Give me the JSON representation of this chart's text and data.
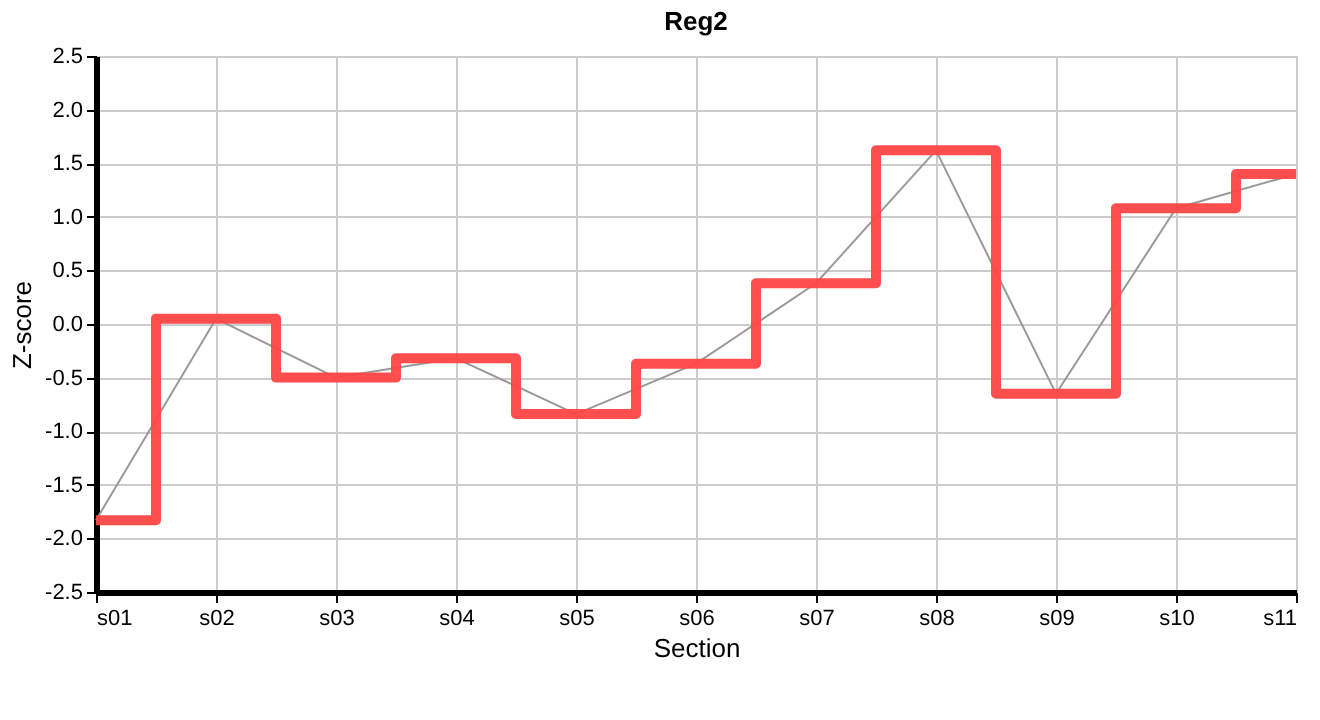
{
  "chart_data": {
    "type": "step",
    "title": "Reg2",
    "xlabel": "Section",
    "ylabel": "Z-score",
    "categories": [
      "s01",
      "s02",
      "s03",
      "s04",
      "s05",
      "s06",
      "s07",
      "s08",
      "s09",
      "s10",
      "s11"
    ],
    "series": [
      {
        "type": "line",
        "color": "#999999",
        "values": [
          -1.83,
          0.05,
          -0.5,
          -0.32,
          -0.84,
          -0.37,
          0.38,
          1.62,
          -0.65,
          1.08,
          1.4
        ]
      },
      {
        "color": "#ff4444",
        "values": [
          -1.83,
          0.05,
          -0.5,
          -0.32,
          -0.84,
          -0.37,
          0.38,
          1.62,
          -0.65,
          1.08,
          1.4
        ]
      }
    ],
    "ylim": [
      -2.5,
      2.5
    ],
    "yticks": [
      {
        "value": -2.5,
        "label": "-2.5"
      },
      {
        "value": -2,
        "label": "-2.0"
      },
      {
        "value": -1.5,
        "label": "-1.5"
      },
      {
        "value": -1,
        "label": "-1.0"
      },
      {
        "value": -0.5,
        "label": "-0.5"
      },
      {
        "value": 0,
        "label": "0.0"
      },
      {
        "value": 0.5,
        "label": "0.5"
      },
      {
        "value": 1,
        "label": "1.0"
      },
      {
        "value": 1.5,
        "label": "1.5"
      },
      {
        "value": 2,
        "label": "2.0"
      },
      {
        "value": 2.5,
        "label": "2.5"
      }
    ],
    "grid": true
  }
}
